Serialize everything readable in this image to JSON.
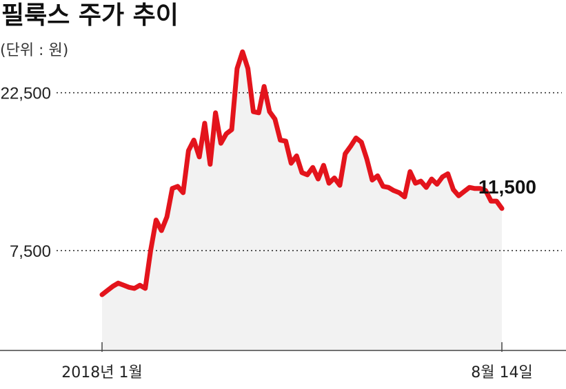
{
  "chart_data": {
    "type": "line",
    "title": "필룩스 주가 추이",
    "unit_label": "(단위 : 원)",
    "x_tick_labels": [
      "2018년 1월",
      "8월 14일"
    ],
    "y_tick_values": [
      7500,
      22500
    ],
    "y_tick_labels": [
      "7,500",
      "22,500"
    ],
    "ylim": [
      -2000,
      27000
    ],
    "grid": "horizontal dotted at y ticks",
    "last_value_label": "11,500",
    "colors": {
      "line": "#e3141c",
      "area": "#f2f2f2",
      "grid": "#333333",
      "axis": "#444444"
    },
    "series": [
      {
        "values": [
          3300,
          3700,
          4100,
          4400,
          4200,
          4000,
          3900,
          4200,
          3900,
          7500,
          10400,
          9400,
          10700,
          13400,
          13600,
          13000,
          17000,
          18000,
          16400,
          19600,
          15700,
          20600,
          17700,
          18600,
          19000,
          24800,
          26400,
          24800,
          20700,
          20600,
          23100,
          20700,
          20000,
          18000,
          17900,
          15800,
          16500,
          14900,
          14700,
          15400,
          14300,
          15600,
          13900,
          14400,
          13700,
          16700,
          17400,
          18200,
          17800,
          16200,
          14200,
          14600,
          13600,
          13500,
          13200,
          13000,
          12600,
          15000,
          13900,
          14100,
          13500,
          14300,
          13800,
          14500,
          14800,
          13300,
          12700,
          13100,
          13500,
          13400,
          13400,
          13200,
          12200,
          12200,
          11500
        ]
      }
    ]
  }
}
